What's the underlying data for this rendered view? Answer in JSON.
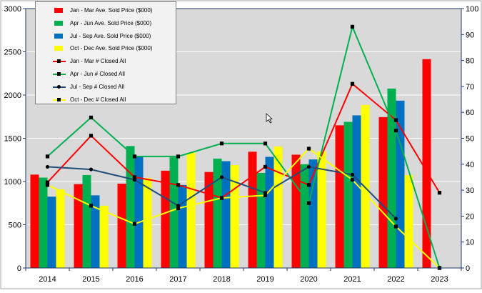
{
  "chart_data": {
    "type": "bar",
    "categories": [
      "2014",
      "2015",
      "2016",
      "2017",
      "2018",
      "2019",
      "2020",
      "2021",
      "2022",
      "2023"
    ],
    "y_left": {
      "ylim": [
        0,
        3000
      ],
      "ticks": [
        "0",
        "500",
        "1000",
        "1500",
        "2000",
        "2500",
        "3000"
      ]
    },
    "y_right": {
      "ylim": [
        0,
        100
      ],
      "ticks": [
        "0",
        "10",
        "20",
        "30",
        "40",
        "50",
        "60",
        "70",
        "80",
        "90",
        "100"
      ]
    },
    "grid": true,
    "legend": "top-left",
    "bar_series": [
      {
        "name": "Jan - Mar Ave. Sold Price ($000)",
        "color": "#ff0000",
        "values": [
          1080,
          970,
          975,
          1125,
          1110,
          1345,
          1310,
          1650,
          1745,
          2415
        ]
      },
      {
        "name": "Apr - Jun Ave. Sold Price ($000)",
        "color": "#00b050",
        "values": [
          1045,
          1075,
          1410,
          1280,
          1265,
          1100,
          1200,
          1690,
          2075,
          null
        ]
      },
      {
        "name": "Jul - Sep Ave. Sold Price ($000)",
        "color": "#0070c0",
        "values": [
          825,
          840,
          1290,
          960,
          1235,
          1285,
          1255,
          1765,
          1935,
          null
        ]
      },
      {
        "name": "Oct - Dec Ave. Sold Price ($000)",
        "color": "#ffff00",
        "values": [
          910,
          720,
          1040,
          1335,
          1190,
          1405,
          1350,
          1885,
          1075,
          null
        ]
      }
    ],
    "line_series": [
      {
        "name": "Jan - Mar # Closed All",
        "color": "#ff0000",
        "marker": "square",
        "values": [
          33,
          51,
          35,
          32,
          27,
          39,
          32,
          71,
          57,
          29
        ]
      },
      {
        "name": "Apr - Jun # Closed All",
        "color": "#00b050",
        "marker": "square",
        "values": [
          43,
          58,
          43,
          43,
          48,
          48,
          25,
          93,
          53,
          0
        ]
      },
      {
        "name": "Jul - Sep # Closed All",
        "color": "#1f4e79",
        "marker": "circle",
        "values": [
          39,
          38,
          34,
          24,
          35,
          29,
          39,
          36,
          19,
          null
        ]
      },
      {
        "name": "Oct - Dec # Closed All",
        "color": "#ffff00",
        "marker": "square",
        "values": [
          32,
          24,
          17,
          23,
          27,
          28,
          46,
          34,
          16,
          0
        ]
      }
    ]
  }
}
